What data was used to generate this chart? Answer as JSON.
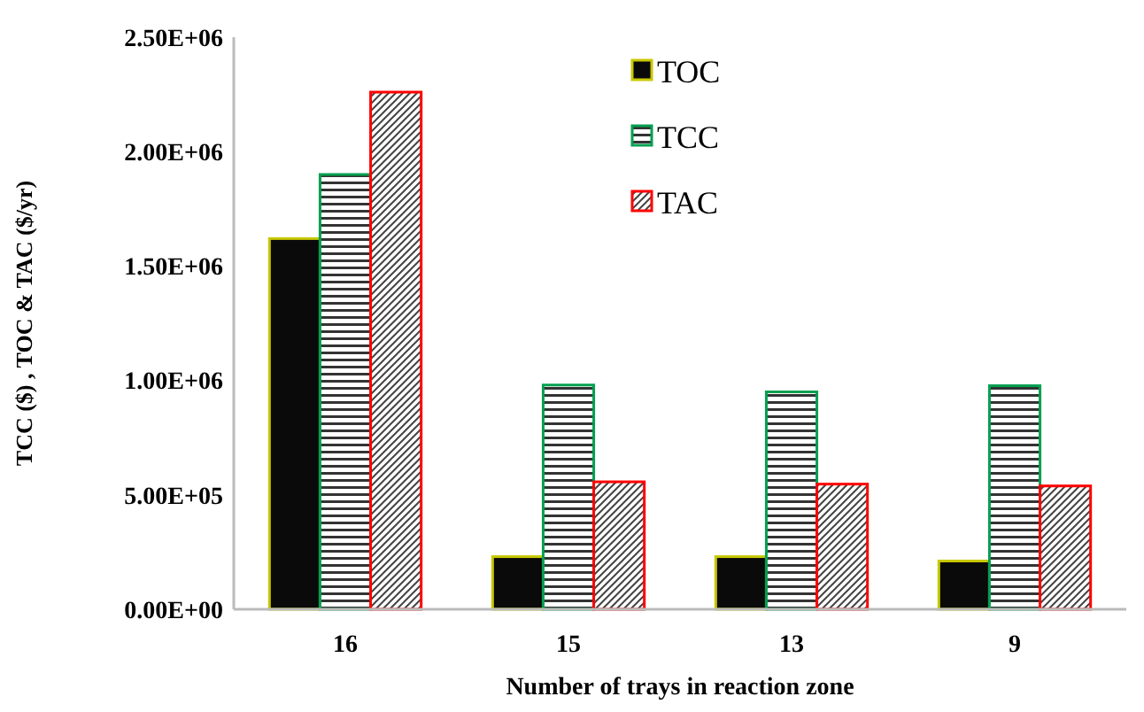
{
  "chart_data": {
    "type": "bar",
    "xlabel": "Number of trays in reaction zone",
    "ylabel": "TCC ($) , TOC & TAC ($/yr)",
    "categories": [
      "16",
      "15",
      "13",
      "9"
    ],
    "series": [
      {
        "name": "TOC",
        "color": "#c8c800",
        "values": [
          1620000,
          230000,
          230000,
          211000
        ]
      },
      {
        "name": "TCC",
        "color": "#00a050",
        "values": [
          1900000,
          980000,
          950000,
          977000
        ]
      },
      {
        "name": "TAC",
        "color": "#ff0000",
        "values": [
          2260000,
          557000,
          547000,
          539000
        ]
      }
    ],
    "ylim": [
      0,
      2500000
    ],
    "yticks": [
      {
        "value": 0,
        "label": "0.00E+00"
      },
      {
        "value": 500000,
        "label": "5.00E+05"
      },
      {
        "value": 1000000,
        "label": "1.00E+06"
      },
      {
        "value": 1500000,
        "label": "1.50E+06"
      },
      {
        "value": 2000000,
        "label": "2.00E+06"
      },
      {
        "value": 2500000,
        "label": "2.50E+06"
      }
    ],
    "legend": "top",
    "grid": false
  }
}
